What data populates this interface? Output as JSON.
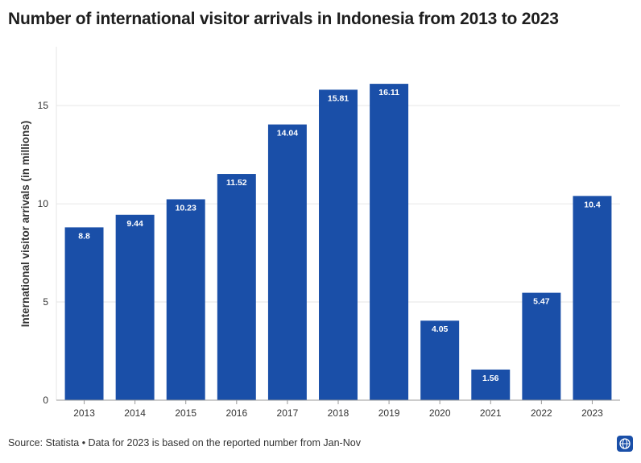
{
  "title": "Number of international visitor arrivals in Indonesia from 2013 to 2023",
  "footer": {
    "source": "Source: Statista • Data for 2023 is based on the reported number from Jan-Nov"
  },
  "badge_icon": "globe-icon",
  "colors": {
    "bar": "#1a4fa8",
    "grid": "#e6e6e6",
    "axis": "#999999"
  },
  "chart_data": {
    "type": "bar",
    "title": "Number of international visitor arrivals in Indonesia from 2013 to 2023",
    "xlabel": "",
    "ylabel": "International visitor arrivals (in millions)",
    "categories": [
      "2013",
      "2014",
      "2015",
      "2016",
      "2017",
      "2018",
      "2019",
      "2020",
      "2021",
      "2022",
      "2023"
    ],
    "values": [
      8.8,
      9.44,
      10.23,
      11.52,
      14.04,
      15.81,
      16.11,
      4.05,
      1.56,
      5.47,
      10.4
    ],
    "data_labels": [
      "8.8",
      "9.44",
      "10.23",
      "11.52",
      "14.04",
      "15.81",
      "16.11",
      "4.05",
      "1.56",
      "5.47",
      "10.4"
    ],
    "ylim": [
      0,
      18
    ],
    "yticks": [
      0,
      5,
      10,
      15
    ],
    "grid": true,
    "legend": "none"
  }
}
